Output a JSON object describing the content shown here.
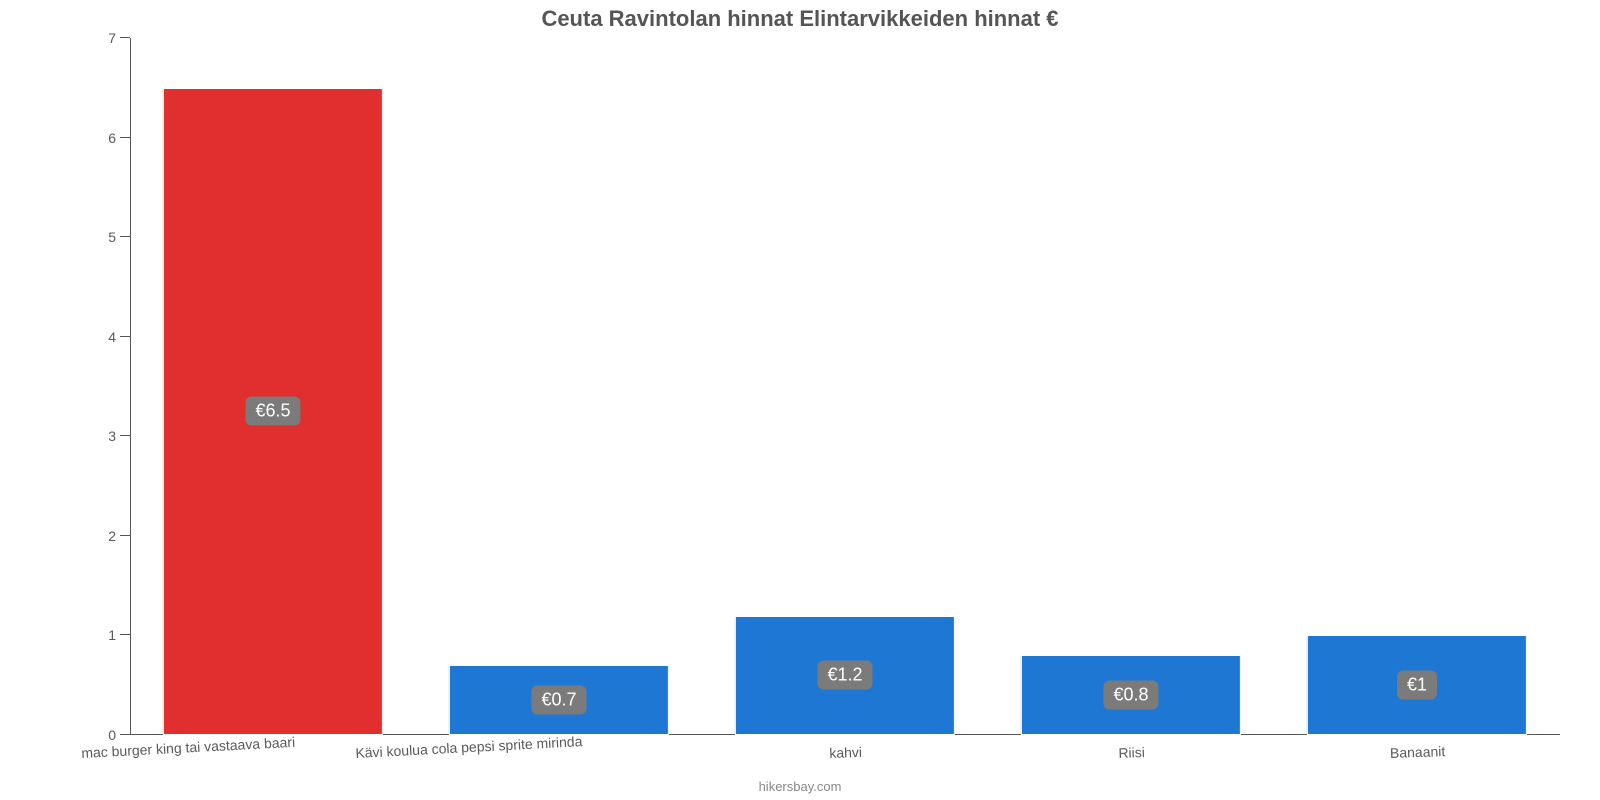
{
  "chart": {
    "type": "bar",
    "title": "Ceuta Ravintolan hinnat Elintarvikkeiden hinnat €",
    "title_fontsize": 22,
    "title_color": "#555555",
    "footer": "hikersbay.com",
    "footer_color": "#888888",
    "background_color": "#ffffff",
    "axis_color": "#555555",
    "tick_label_color": "#5a5a5a",
    "tick_fontsize": 14,
    "ylim": [
      0,
      7
    ],
    "ytick_step": 1,
    "yticks": [
      0,
      1,
      2,
      3,
      4,
      5,
      6,
      7
    ],
    "bar_width_ratio": 0.77,
    "badge_bg": "#7b7b7b",
    "badge_text_color": "#ffffff",
    "categories": [
      "mac burger king tai vastaava baari",
      "Kävi koulua cola pepsi sprite mirinda",
      "kahvi",
      "Riisi",
      "Banaanit"
    ],
    "values": [
      6.5,
      0.7,
      1.2,
      0.8,
      1.0
    ],
    "value_labels": [
      "€6.5",
      "€0.7",
      "€1.2",
      "€0.8",
      "€1"
    ],
    "bar_colors": [
      "#e12e2e",
      "#1f77d4",
      "#1f77d4",
      "#1f77d4",
      "#1f77d4"
    ],
    "category_label_long": [
      true,
      true,
      false,
      false,
      false
    ]
  }
}
